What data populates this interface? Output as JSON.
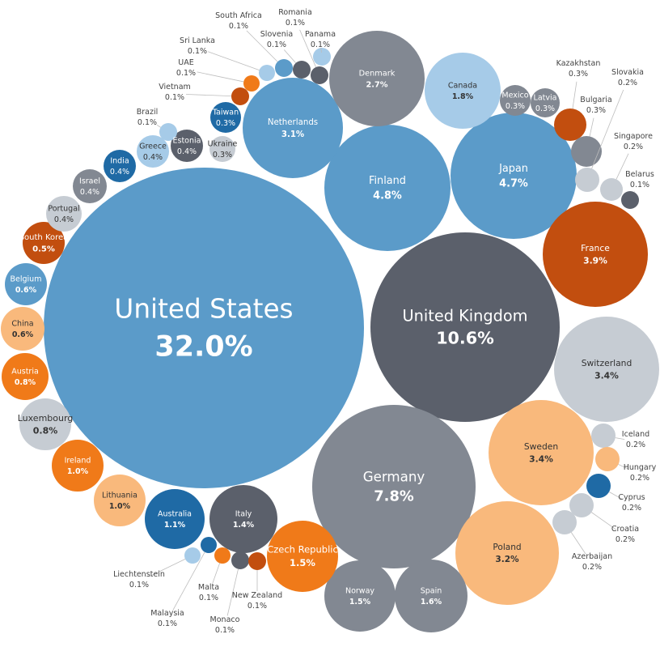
{
  "chart_data": {
    "type": "bubble",
    "title": "",
    "unit": "%",
    "colors": {
      "blue": "#5b9bc9",
      "dark_blue": "#1f6aa5",
      "light_blue": "#a6cbe8",
      "dark_gray": "#5b606b",
      "gray": "#828892",
      "light_gray": "#c6ccd3",
      "dark_orange": "#c24e0f",
      "orange": "#f07a19",
      "light_orange": "#f9b97c"
    },
    "points": [
      {
        "name": "United States",
        "value": 32.0,
        "label": "32.0%",
        "color": "blue"
      },
      {
        "name": "United Kingdom",
        "value": 10.6,
        "label": "10.6%",
        "color": "dark_gray"
      },
      {
        "name": "Germany",
        "value": 7.8,
        "label": "7.8%",
        "color": "gray"
      },
      {
        "name": "Finland",
        "value": 4.8,
        "label": "4.8%",
        "color": "blue"
      },
      {
        "name": "Japan",
        "value": 4.7,
        "label": "4.7%",
        "color": "blue"
      },
      {
        "name": "France",
        "value": 3.9,
        "label": "3.9%",
        "color": "dark_orange"
      },
      {
        "name": "Switzerland",
        "value": 3.4,
        "label": "3.4%",
        "color": "light_gray"
      },
      {
        "name": "Sweden",
        "value": 3.4,
        "label": "3.4%",
        "color": "light_orange"
      },
      {
        "name": "Poland",
        "value": 3.2,
        "label": "3.2%",
        "color": "light_orange"
      },
      {
        "name": "Netherlands",
        "value": 3.1,
        "label": "3.1%",
        "color": "blue"
      },
      {
        "name": "Denmark",
        "value": 2.7,
        "label": "2.7%",
        "color": "gray"
      },
      {
        "name": "Canada",
        "value": 1.8,
        "label": "1.8%",
        "color": "light_blue"
      },
      {
        "name": "Spain",
        "value": 1.6,
        "label": "1.6%",
        "color": "gray"
      },
      {
        "name": "Norway",
        "value": 1.5,
        "label": "1.5%",
        "color": "gray"
      },
      {
        "name": "Czech Republic",
        "value": 1.5,
        "label": "1.5%",
        "color": "orange"
      },
      {
        "name": "Italy",
        "value": 1.4,
        "label": "1.4%",
        "color": "dark_gray"
      },
      {
        "name": "Australia",
        "value": 1.1,
        "label": "1.1%",
        "color": "dark_blue"
      },
      {
        "name": "Lithuania",
        "value": 1.0,
        "label": "1.0%",
        "color": "light_orange"
      },
      {
        "name": "Ireland",
        "value": 1.0,
        "label": "1.0%",
        "color": "orange"
      },
      {
        "name": "Luxembourg",
        "value": 0.8,
        "label": "0.8%",
        "color": "light_gray"
      },
      {
        "name": "Austria",
        "value": 0.8,
        "label": "0.8%",
        "color": "orange"
      },
      {
        "name": "China",
        "value": 0.6,
        "label": "0.6%",
        "color": "light_orange"
      },
      {
        "name": "Belgium",
        "value": 0.6,
        "label": "0.6%",
        "color": "blue"
      },
      {
        "name": "South Korea",
        "value": 0.5,
        "label": "0.5%",
        "color": "dark_orange"
      },
      {
        "name": "Portugal",
        "value": 0.4,
        "label": "0.4%",
        "color": "light_gray"
      },
      {
        "name": "Israel",
        "value": 0.4,
        "label": "0.4%",
        "color": "gray"
      },
      {
        "name": "India",
        "value": 0.4,
        "label": "0.4%",
        "color": "dark_blue"
      },
      {
        "name": "Greece",
        "value": 0.4,
        "label": "0.4%",
        "color": "light_blue"
      },
      {
        "name": "Estonia",
        "value": 0.4,
        "label": "0.4%",
        "color": "dark_gray"
      },
      {
        "name": "Ukraine",
        "value": 0.3,
        "label": "0.3%",
        "color": "light_gray"
      },
      {
        "name": "Taiwan",
        "value": 0.3,
        "label": "0.3%",
        "color": "dark_blue"
      },
      {
        "name": "Mexico",
        "value": 0.3,
        "label": "0.3%",
        "color": "gray"
      },
      {
        "name": "Latvia",
        "value": 0.3,
        "label": "0.3%",
        "color": "gray"
      },
      {
        "name": "Kazakhstan",
        "value": 0.3,
        "label": "0.3%",
        "color": "dark_orange"
      },
      {
        "name": "Bulgaria",
        "value": 0.3,
        "label": "0.3%",
        "color": "gray"
      },
      {
        "name": "Slovakia",
        "value": 0.2,
        "label": "0.2%",
        "color": "light_gray"
      },
      {
        "name": "Singapore",
        "value": 0.2,
        "label": "0.2%",
        "color": "light_gray"
      },
      {
        "name": "Iceland",
        "value": 0.2,
        "label": "0.2%",
        "color": "light_gray"
      },
      {
        "name": "Hungary",
        "value": 0.2,
        "label": "0.2%",
        "color": "light_orange"
      },
      {
        "name": "Cyprus",
        "value": 0.2,
        "label": "0.2%",
        "color": "dark_blue"
      },
      {
        "name": "Croatia",
        "value": 0.2,
        "label": "0.2%",
        "color": "light_gray"
      },
      {
        "name": "Azerbaijan",
        "value": 0.2,
        "label": "0.2%",
        "color": "light_gray"
      },
      {
        "name": "Belarus",
        "value": 0.1,
        "label": "0.1%",
        "color": "dark_gray"
      },
      {
        "name": "Brazil",
        "value": 0.1,
        "label": "0.1%",
        "color": "light_blue"
      },
      {
        "name": "Vietnam",
        "value": 0.1,
        "label": "0.1%",
        "color": "dark_orange"
      },
      {
        "name": "UAE",
        "value": 0.1,
        "label": "0.1%",
        "color": "orange"
      },
      {
        "name": "Sri Lanka",
        "value": 0.1,
        "label": "0.1%",
        "color": "light_blue"
      },
      {
        "name": "South Africa",
        "value": 0.1,
        "label": "0.1%",
        "color": "blue"
      },
      {
        "name": "Slovenia",
        "value": 0.1,
        "label": "0.1%",
        "color": "dark_gray"
      },
      {
        "name": "Romania",
        "value": 0.1,
        "label": "0.1%",
        "color": "dark_gray"
      },
      {
        "name": "Panama",
        "value": 0.1,
        "label": "0.1%",
        "color": "light_blue"
      },
      {
        "name": "Liechtenstein",
        "value": 0.1,
        "label": "0.1%",
        "color": "light_blue"
      },
      {
        "name": "Malaysia",
        "value": 0.1,
        "label": "0.1%",
        "color": "dark_blue"
      },
      {
        "name": "Malta",
        "value": 0.1,
        "label": "0.1%",
        "color": "orange"
      },
      {
        "name": "Monaco",
        "value": 0.1,
        "label": "0.1%",
        "color": "dark_gray"
      },
      {
        "name": "New Zealand",
        "value": 0.1,
        "label": "0.1%",
        "color": "dark_orange"
      }
    ]
  }
}
